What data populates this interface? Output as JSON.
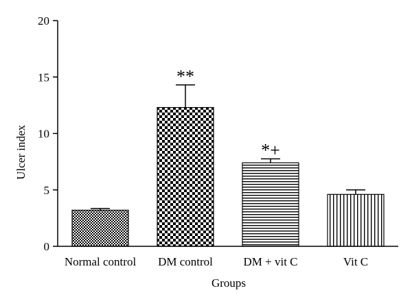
{
  "chart_data": {
    "type": "bar",
    "xlabel": "Groups",
    "ylabel": "Ulcer index",
    "ylim": [
      0,
      20
    ],
    "yticks": [
      0,
      5,
      10,
      15,
      20
    ],
    "categories": [
      "Normal control",
      "DM control",
      "DM + vit C",
      "Vit C"
    ],
    "values": [
      3.2,
      12.3,
      7.4,
      4.6
    ],
    "errors": [
      0.15,
      2.0,
      0.35,
      0.4
    ],
    "annotations": [
      "",
      "**",
      "*+",
      ""
    ],
    "patterns": [
      "fine-checker",
      "coarse-checker",
      "horizontal-lines",
      "vertical-lines"
    ],
    "grid": false,
    "legend": "none"
  }
}
